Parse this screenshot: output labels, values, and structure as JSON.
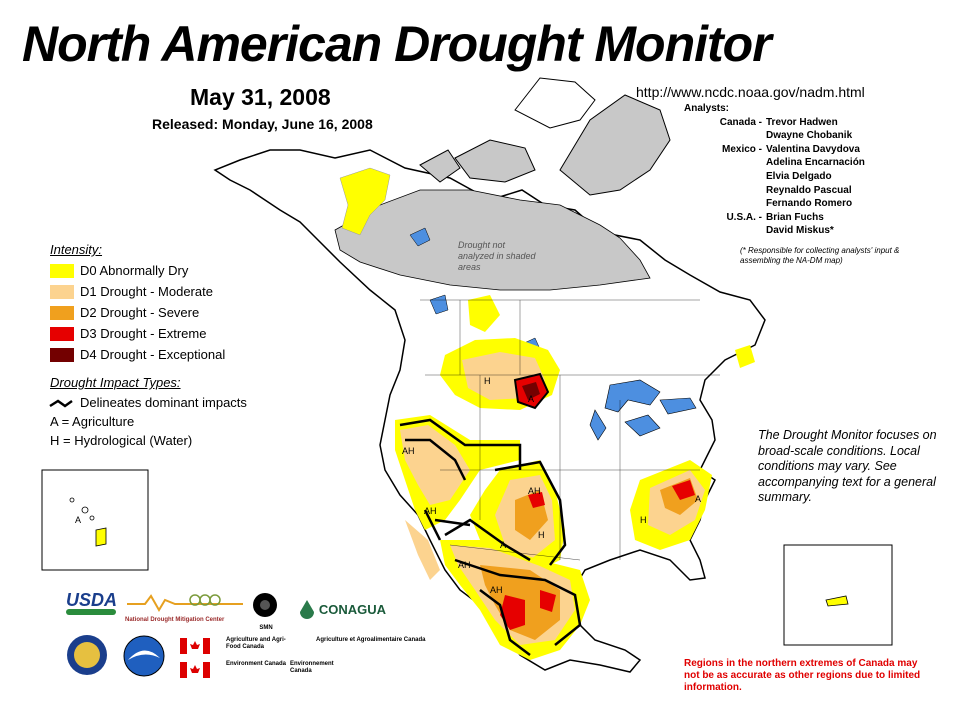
{
  "title": "North American Drought Monitor",
  "date": "May 31, 2008",
  "released": "Released:  Monday, June 16, 2008",
  "url": "http://www.ncdc.noaa.gov/nadm.html",
  "analysts": {
    "heading": "Analysts:",
    "rows": [
      {
        "region": "Canada -",
        "name": "Trevor Hadwen"
      },
      {
        "region": "",
        "name": "Dwayne Chobanik"
      },
      {
        "region": "Mexico -",
        "name": "Valentina Davydova"
      },
      {
        "region": "",
        "name": "Adelina Encarnación"
      },
      {
        "region": "",
        "name": "Elvia Delgado"
      },
      {
        "region": "",
        "name": "Reynaldo Pascual"
      },
      {
        "region": "",
        "name": "Fernando Romero"
      },
      {
        "region": "U.S.A. -",
        "name": "Brian Fuchs"
      },
      {
        "region": "",
        "name": "David Miskus*"
      }
    ],
    "responsible_note": "(* Responsible for collecting analysts' input & assembling the NA-DM map)"
  },
  "shaded_note": "Drought not analyzed in shaded areas",
  "legend": {
    "heading": "Intensity:",
    "items": [
      {
        "label": "D0 Abnormally Dry",
        "color": "#ffff00"
      },
      {
        "label": "D1 Drought - Moderate",
        "color": "#fcd38f"
      },
      {
        "label": "D2 Drought - Severe",
        "color": "#f0a01e"
      },
      {
        "label": "D3 Drought - Extreme",
        "color": "#e60000"
      },
      {
        "label": "D4 Drought - Exceptional",
        "color": "#730000"
      }
    ]
  },
  "impact": {
    "heading": "Drought Impact Types:",
    "delineates": "Delineates dominant impacts",
    "a": "A = Agriculture",
    "h": "H = Hydrological (Water)"
  },
  "map_labels": {
    "a": "A",
    "h": "H",
    "ah": "AH"
  },
  "monitor_note": "The Drought Monitor focuses on broad-scale conditions.  Local conditions may vary.  See accompanying text for a general summary.",
  "regions_note": "Regions in the northern extremes of Canada may not be as accurate as other regions due to limited information.",
  "logos": {
    "usda": "USDA",
    "ndmc": "National Drought Mitigation Center",
    "smn": "SMN",
    "conagua": "CONAGUA",
    "aafc_en": "Agriculture and Agri-Food Canada",
    "aafc_fr": "Agriculture et Agroalimentaire Canada",
    "ec_en": "Environment Canada",
    "ec_fr": "Environnement Canada"
  },
  "colors": {
    "land": "#ffffff",
    "water": "#4d8fe0",
    "shaded": "#c8c8c8",
    "border": "#000000"
  }
}
